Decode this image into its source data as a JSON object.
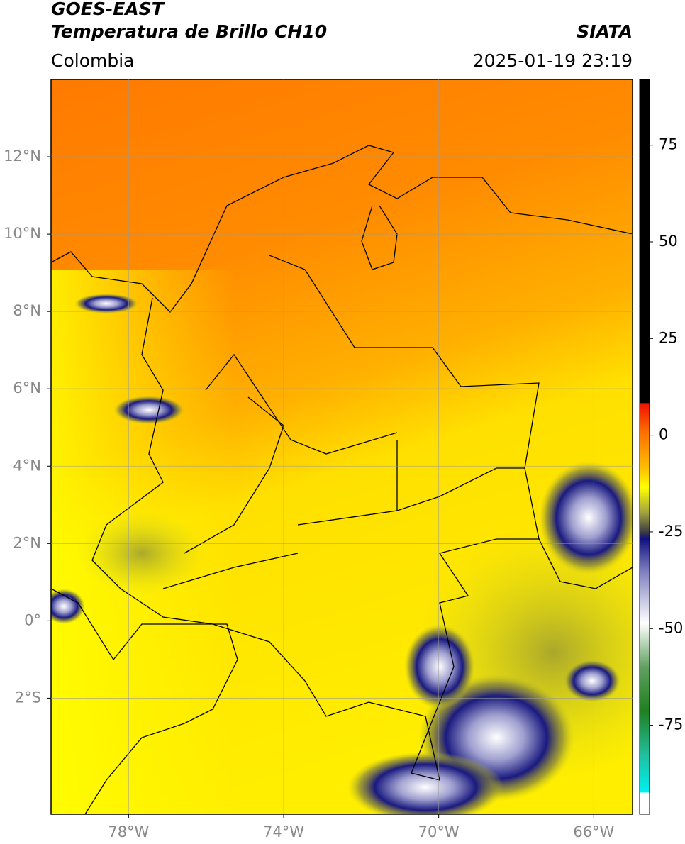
{
  "header": {
    "title": "GOES-EAST",
    "subtitle": "Temperatura de Brillo CH10",
    "source": "SIATA",
    "region": "Colombia",
    "timestamp": "2025-01-19 23:19"
  },
  "map": {
    "xlim": [
      -80,
      -65
    ],
    "ylim": [
      -5,
      14
    ],
    "xticks": [
      {
        "value": -78,
        "label": "78°W"
      },
      {
        "value": -74,
        "label": "74°W"
      },
      {
        "value": -70,
        "label": "70°W"
      },
      {
        "value": -66,
        "label": "66°W"
      }
    ],
    "yticks": [
      {
        "value": 12,
        "label": "12°N"
      },
      {
        "value": 10,
        "label": "10°N"
      },
      {
        "value": 8,
        "label": "8°N"
      },
      {
        "value": 6,
        "label": "6°N"
      },
      {
        "value": 4,
        "label": "4°N"
      },
      {
        "value": 2,
        "label": "2°N"
      },
      {
        "value": 0,
        "label": "0°"
      },
      {
        "value": -2,
        "label": "2°S"
      }
    ],
    "grid": true
  },
  "colorbar": {
    "lim": [
      -98,
      92
    ],
    "ticks": [
      75,
      50,
      25,
      0,
      -25,
      -50,
      -75
    ]
  }
}
